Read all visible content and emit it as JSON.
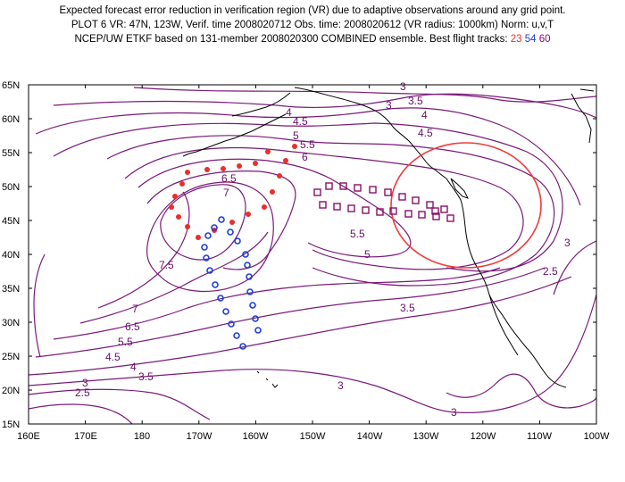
{
  "header": {
    "line1": "Expected forecast error reduction in verification region (VR) due to adaptive observations around any grid point.",
    "line2": "PLOT 6 VR: 47N, 123W, Verif. time 2008020712 Obs. time: 2008020612 (VR radius: 1000km) Norm: u,v,T",
    "line3_prefix": "NCEP/UW ETKF based on 131-member 2008020300 COMBINED ensemble.  Best flight tracks: ",
    "track_red": "23",
    "track_blue": "54",
    "track_purple": "60"
  },
  "map": {
    "lat_labels": [
      "65N",
      "60N",
      "55N",
      "50N",
      "45N",
      "40N",
      "35N",
      "30N",
      "25N",
      "20N",
      "15N"
    ],
    "lon_labels": [
      "160E",
      "170E",
      "180",
      "170W",
      "160W",
      "150W",
      "140W",
      "130W",
      "120W",
      "110W",
      "100W"
    ],
    "contour_labels": [
      "3",
      "3.5",
      "4",
      "4.5",
      "5",
      "5.5",
      "6",
      "6.5",
      "7",
      "7.5",
      "5.5",
      "5",
      "4.5",
      "4",
      "3.5",
      "3",
      "7",
      "6.5",
      "5.5",
      "4.5",
      "4",
      "3.5",
      "3",
      "2.5",
      "3",
      "3",
      "2.5",
      "3"
    ],
    "colors": {
      "contour": "#7a1a7a",
      "coast": "#000000",
      "vr_circle": "#f03c3c",
      "track_red": "#e8302a",
      "track_blue": "#1d3fd6",
      "track_purple": "#8a0f6b"
    },
    "verification_region": {
      "center_lat": 47,
      "center_lon": -123,
      "radius_km": 1000
    }
  }
}
